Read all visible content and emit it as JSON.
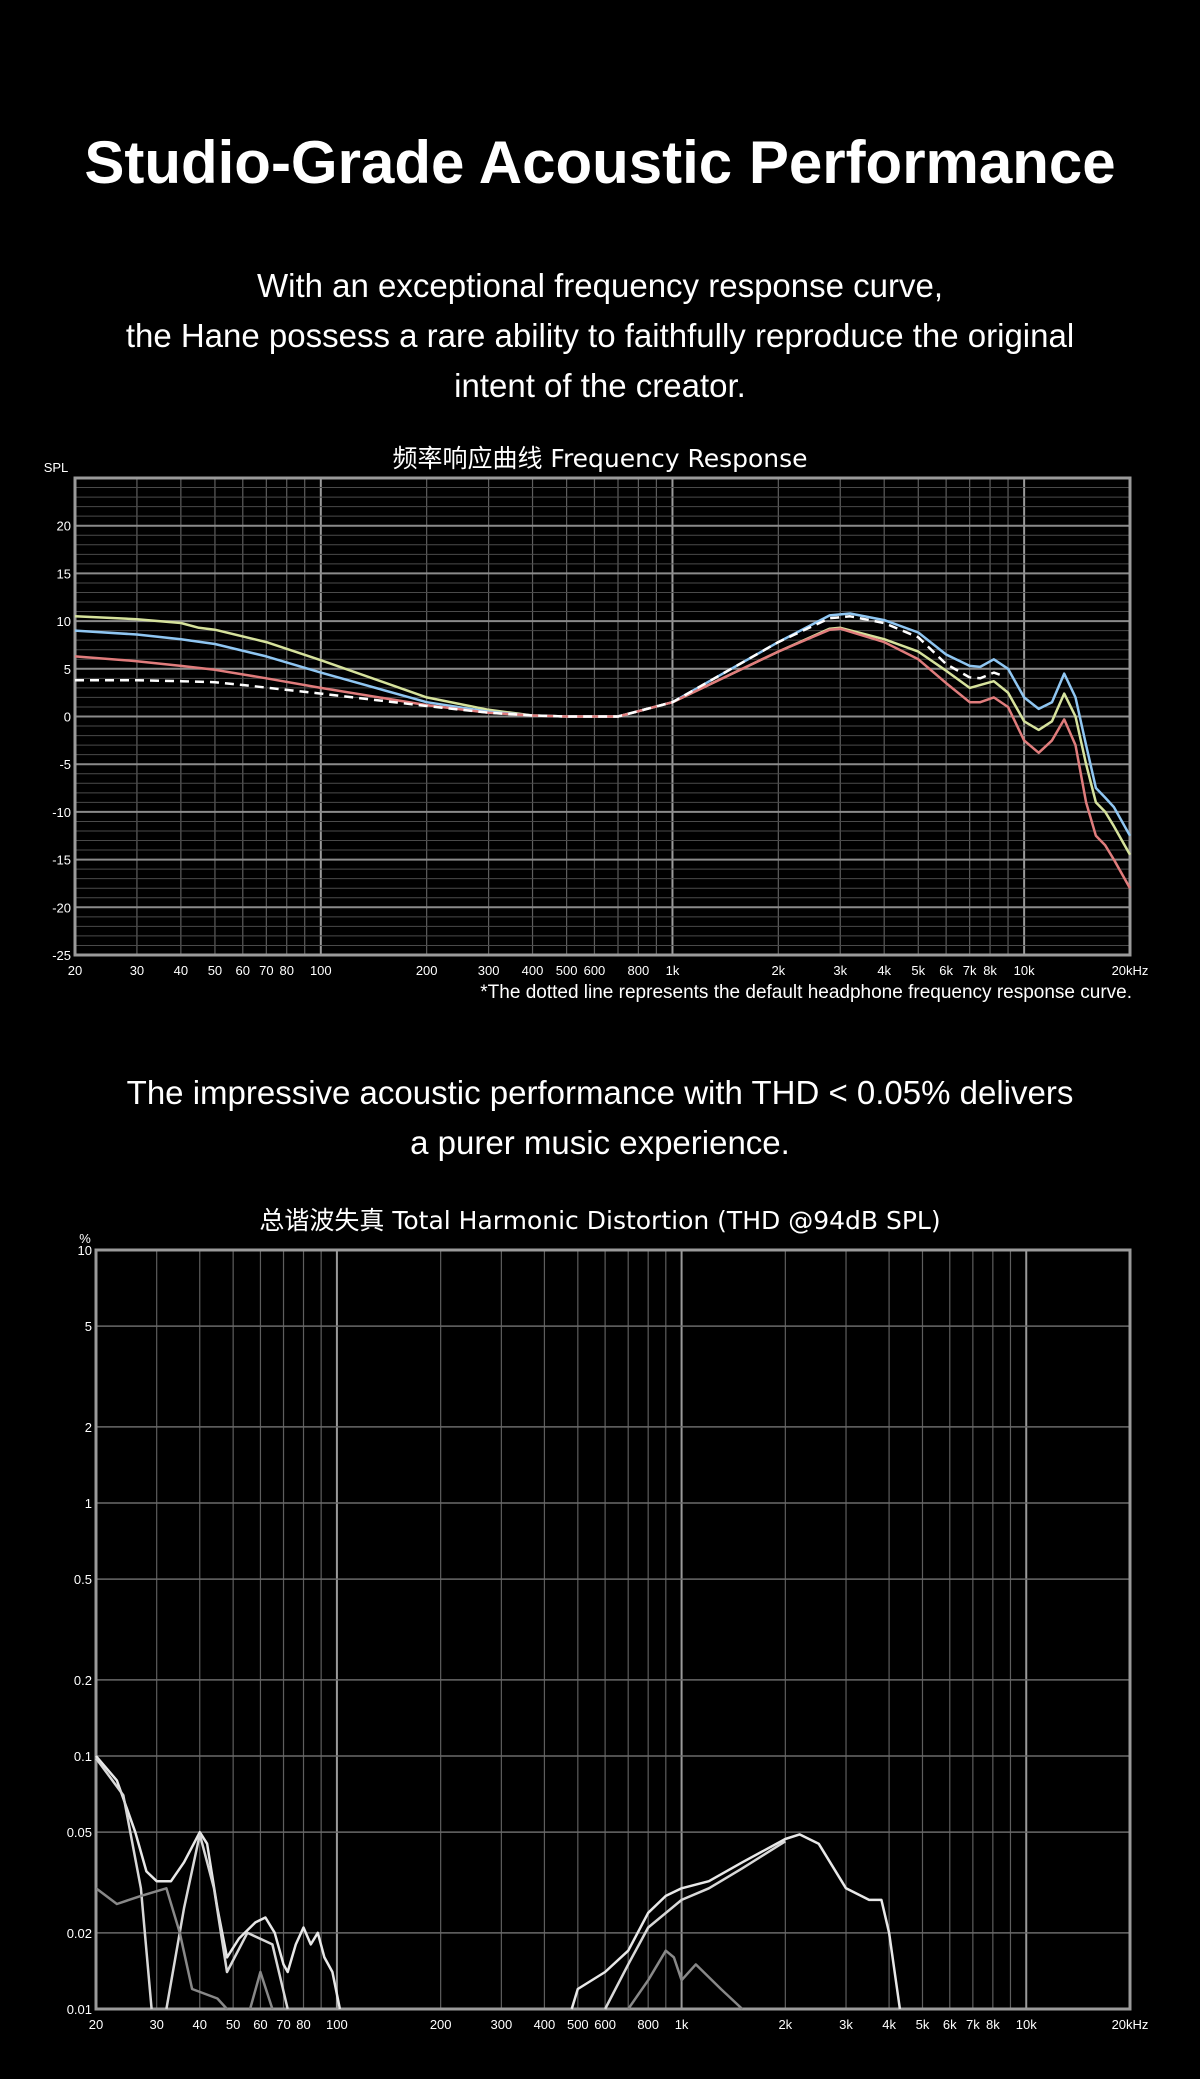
{
  "header": {
    "title": "Studio-Grade Acoustic Performance",
    "intro_lines": [
      "With an exceptional frequency response curve,",
      "the Hane possess a rare ability to faithfully reproduce the original",
      "intent of the creator."
    ]
  },
  "thd_section": {
    "lines": [
      "The impressive acoustic performance with THD < 0.05% delivers",
      "a purer music experience."
    ]
  },
  "chart_data": [
    {
      "type": "line",
      "title": "频率响应曲线  Frequency Response",
      "ylabel": "SPL",
      "xscale": "log",
      "xlim": [
        20,
        20000
      ],
      "ylim": [
        -25,
        25
      ],
      "grid": true,
      "xticks": [
        [
          20,
          "20"
        ],
        [
          30,
          "30"
        ],
        [
          40,
          "40"
        ],
        [
          50,
          "50"
        ],
        [
          60,
          "60"
        ],
        [
          70,
          "70"
        ],
        [
          80,
          "80"
        ],
        [
          100,
          "100"
        ],
        [
          200,
          "200"
        ],
        [
          300,
          "300"
        ],
        [
          400,
          "400"
        ],
        [
          500,
          "500"
        ],
        [
          600,
          "600"
        ],
        [
          800,
          "800"
        ],
        [
          1000,
          "1k"
        ],
        [
          2000,
          "2k"
        ],
        [
          3000,
          "3k"
        ],
        [
          4000,
          "4k"
        ],
        [
          5000,
          "5k"
        ],
        [
          6000,
          "6k"
        ],
        [
          7000,
          "7k"
        ],
        [
          8000,
          "8k"
        ],
        [
          10000,
          "10k"
        ],
        [
          20000,
          "20kHz"
        ]
      ],
      "yticks": [
        20,
        15,
        10,
        5,
        0,
        -5,
        -10,
        -15,
        -20,
        -25
      ],
      "note": "*The dotted line represents the default headphone frequency response curve.",
      "series": [
        {
          "color": "#d6e29c",
          "style": "solid",
          "points": [
            [
              20,
              10.5
            ],
            [
              30,
              10.2
            ],
            [
              40,
              9.8
            ],
            [
              45,
              9.3
            ],
            [
              50,
              9.1
            ],
            [
              70,
              7.8
            ],
            [
              100,
              5.9
            ],
            [
              200,
              2
            ],
            [
              300,
              0.7
            ],
            [
              400,
              0.1
            ],
            [
              500,
              0
            ],
            [
              700,
              0
            ],
            [
              1000,
              1.5
            ],
            [
              2000,
              6.8
            ],
            [
              2800,
              9.2
            ],
            [
              3000,
              9.3
            ],
            [
              4000,
              8.1
            ],
            [
              5000,
              6.8
            ],
            [
              6000,
              4.8
            ],
            [
              7000,
              3
            ],
            [
              8200,
              3.7
            ],
            [
              9000,
              2.5
            ],
            [
              10000,
              -0.5
            ],
            [
              11000,
              -1.4
            ],
            [
              12000,
              -0.5
            ],
            [
              13000,
              2.4
            ],
            [
              14000,
              0
            ],
            [
              15000,
              -5
            ],
            [
              16000,
              -9
            ],
            [
              17000,
              -10
            ],
            [
              18000,
              -11.5
            ],
            [
              20000,
              -14.5
            ]
          ]
        },
        {
          "color": "#8fc6f2",
          "style": "solid",
          "points": [
            [
              20,
              9
            ],
            [
              30,
              8.6
            ],
            [
              40,
              8.1
            ],
            [
              50,
              7.6
            ],
            [
              70,
              6.3
            ],
            [
              100,
              4.6
            ],
            [
              200,
              1.5
            ],
            [
              300,
              0.5
            ],
            [
              400,
              0.1
            ],
            [
              500,
              0
            ],
            [
              700,
              0
            ],
            [
              1000,
              1.5
            ],
            [
              2000,
              7.8
            ],
            [
              2800,
              10.6
            ],
            [
              3200,
              10.8
            ],
            [
              4000,
              10.1
            ],
            [
              5000,
              8.8
            ],
            [
              6000,
              6.5
            ],
            [
              7000,
              5.3
            ],
            [
              7500,
              5.2
            ],
            [
              8200,
              6
            ],
            [
              9000,
              5
            ],
            [
              10000,
              2
            ],
            [
              11000,
              0.8
            ],
            [
              12000,
              1.5
            ],
            [
              13000,
              4.5
            ],
            [
              14000,
              2
            ],
            [
              15000,
              -3
            ],
            [
              16000,
              -7.5
            ],
            [
              17000,
              -8.5
            ],
            [
              18000,
              -9.5
            ],
            [
              20000,
              -12.5
            ]
          ]
        },
        {
          "color": "#e07c7c",
          "style": "solid",
          "points": [
            [
              20,
              6.3
            ],
            [
              30,
              5.8
            ],
            [
              40,
              5.3
            ],
            [
              50,
              4.9
            ],
            [
              70,
              4
            ],
            [
              100,
              3
            ],
            [
              200,
              1.2
            ],
            [
              300,
              0.4
            ],
            [
              400,
              0.1
            ],
            [
              500,
              0
            ],
            [
              700,
              0
            ],
            [
              1000,
              1.5
            ],
            [
              2000,
              6.8
            ],
            [
              2800,
              9.1
            ],
            [
              3000,
              9.2
            ],
            [
              4000,
              7.8
            ],
            [
              5000,
              6
            ],
            [
              6000,
              3.5
            ],
            [
              7000,
              1.5
            ],
            [
              7500,
              1.5
            ],
            [
              8200,
              2
            ],
            [
              9000,
              1
            ],
            [
              10000,
              -2.5
            ],
            [
              11000,
              -3.8
            ],
            [
              12000,
              -2.5
            ],
            [
              13000,
              -0.3
            ],
            [
              14000,
              -3
            ],
            [
              15000,
              -9
            ],
            [
              16000,
              -12.5
            ],
            [
              17000,
              -13.5
            ],
            [
              18000,
              -15
            ],
            [
              20000,
              -18
            ]
          ]
        },
        {
          "color": "#ffffff",
          "style": "dashed",
          "points": [
            [
              20,
              3.8
            ],
            [
              30,
              3.8
            ],
            [
              40,
              3.7
            ],
            [
              50,
              3.6
            ],
            [
              60,
              3.3
            ],
            [
              100,
              2.4
            ],
            [
              200,
              1.1
            ],
            [
              300,
              0.4
            ],
            [
              400,
              0.1
            ],
            [
              500,
              0
            ],
            [
              700,
              0
            ],
            [
              1000,
              1.5
            ],
            [
              2000,
              7.8
            ],
            [
              2800,
              10.3
            ],
            [
              3200,
              10.5
            ],
            [
              4000,
              9.8
            ],
            [
              5000,
              8.3
            ],
            [
              6000,
              5.5
            ],
            [
              7000,
              4.1
            ],
            [
              7500,
              4
            ],
            [
              8200,
              4.6
            ],
            [
              8800,
              4.2
            ]
          ]
        }
      ]
    },
    {
      "type": "line",
      "title": "总谐波失真  Total Harmonic Distortion (THD  @94dB SPL)",
      "ylabel": "%",
      "xscale": "log",
      "yscale": "log",
      "xlim": [
        20,
        20000
      ],
      "ylim": [
        0.01,
        10
      ],
      "grid": true,
      "xticks": [
        [
          20,
          "20"
        ],
        [
          30,
          "30"
        ],
        [
          40,
          "40"
        ],
        [
          50,
          "50"
        ],
        [
          60,
          "60"
        ],
        [
          70,
          "70"
        ],
        [
          80,
          "80"
        ],
        [
          100,
          "100"
        ],
        [
          200,
          "200"
        ],
        [
          300,
          "300"
        ],
        [
          400,
          "400"
        ],
        [
          500,
          "500"
        ],
        [
          600,
          "600"
        ],
        [
          800,
          "800"
        ],
        [
          1000,
          "1k"
        ],
        [
          2000,
          "2k"
        ],
        [
          3000,
          "3k"
        ],
        [
          4000,
          "4k"
        ],
        [
          5000,
          "5k"
        ],
        [
          6000,
          "6k"
        ],
        [
          7000,
          "7k"
        ],
        [
          8000,
          "8k"
        ],
        [
          10000,
          "10k"
        ],
        [
          20000,
          "20kHz"
        ]
      ],
      "yticks": [
        [
          10,
          "10"
        ],
        [
          5,
          "5"
        ],
        [
          2,
          "2"
        ],
        [
          1,
          "1"
        ],
        [
          0.5,
          "0.5"
        ],
        [
          0.2,
          "0.2"
        ],
        [
          0.1,
          "0.1"
        ],
        [
          0.05,
          "0.05"
        ],
        [
          0.02,
          "0.02"
        ],
        [
          0.01,
          "0.01"
        ]
      ],
      "series": [
        {
          "color": "#e8e8e8",
          "points": [
            [
              20,
              0.1
            ],
            [
              23,
              0.08
            ],
            [
              26,
              0.05
            ],
            [
              28,
              0.035
            ],
            [
              30,
              0.032
            ],
            [
              33,
              0.032
            ],
            [
              36,
              0.038
            ],
            [
              40,
              0.05
            ],
            [
              42,
              0.045
            ],
            [
              45,
              0.025
            ],
            [
              48,
              0.016
            ],
            [
              52,
              0.019
            ],
            [
              58,
              0.022
            ],
            [
              62,
              0.023
            ],
            [
              66,
              0.02
            ],
            [
              70,
              0.015
            ],
            [
              72,
              0.014
            ],
            [
              76,
              0.018
            ],
            [
              80,
              0.021
            ],
            [
              84,
              0.018
            ],
            [
              88,
              0.02
            ],
            [
              92,
              0.016
            ],
            [
              97,
              0.014
            ],
            [
              102,
              0.01
            ]
          ]
        },
        {
          "color": "#e8e8e8",
          "points": [
            [
              480,
              0.01
            ],
            [
              500,
              0.012
            ],
            [
              600,
              0.014
            ],
            [
              700,
              0.017
            ],
            [
              800,
              0.024
            ],
            [
              900,
              0.028
            ],
            [
              1000,
              0.03
            ],
            [
              1200,
              0.032
            ],
            [
              1500,
              0.038
            ],
            [
              2000,
              0.047
            ],
            [
              2200,
              0.049
            ],
            [
              2500,
              0.045
            ],
            [
              3000,
              0.03
            ],
            [
              3500,
              0.027
            ],
            [
              3800,
              0.027
            ],
            [
              4000,
              0.02
            ],
            [
              4300,
              0.01
            ]
          ]
        },
        {
          "color": "#d8d8d8",
          "points": [
            [
              20,
              0.098
            ],
            [
              24,
              0.07
            ],
            [
              27,
              0.03
            ],
            [
              29,
              0.01
            ]
          ]
        },
        {
          "color": "#d8d8d8",
          "points": [
            [
              32,
              0.01
            ],
            [
              36,
              0.025
            ],
            [
              40,
              0.049
            ],
            [
              44,
              0.03
            ],
            [
              48,
              0.014
            ],
            [
              55,
              0.02
            ],
            [
              65,
              0.018
            ],
            [
              72,
              0.01
            ]
          ]
        },
        {
          "color": "#d8d8d8",
          "points": [
            [
              600,
              0.01
            ],
            [
              700,
              0.015
            ],
            [
              800,
              0.021
            ],
            [
              1000,
              0.027
            ],
            [
              1200,
              0.03
            ],
            [
              1500,
              0.036
            ],
            [
              2000,
              0.046
            ]
          ]
        },
        {
          "color": "#888888",
          "points": [
            [
              20,
              0.03
            ],
            [
              23,
              0.026
            ],
            [
              27,
              0.028
            ],
            [
              32,
              0.03
            ],
            [
              35,
              0.02
            ],
            [
              38,
              0.012
            ],
            [
              45,
              0.011
            ],
            [
              48,
              0.01
            ]
          ]
        },
        {
          "color": "#888888",
          "points": [
            [
              56,
              0.01
            ],
            [
              60,
              0.014
            ],
            [
              65,
              0.01
            ]
          ]
        },
        {
          "color": "#888888",
          "points": [
            [
              700,
              0.01
            ],
            [
              800,
              0.013
            ],
            [
              900,
              0.017
            ],
            [
              950,
              0.016
            ],
            [
              1000,
              0.013
            ],
            [
              1100,
              0.015
            ],
            [
              1300,
              0.012
            ],
            [
              1500,
              0.01
            ]
          ]
        }
      ]
    }
  ]
}
